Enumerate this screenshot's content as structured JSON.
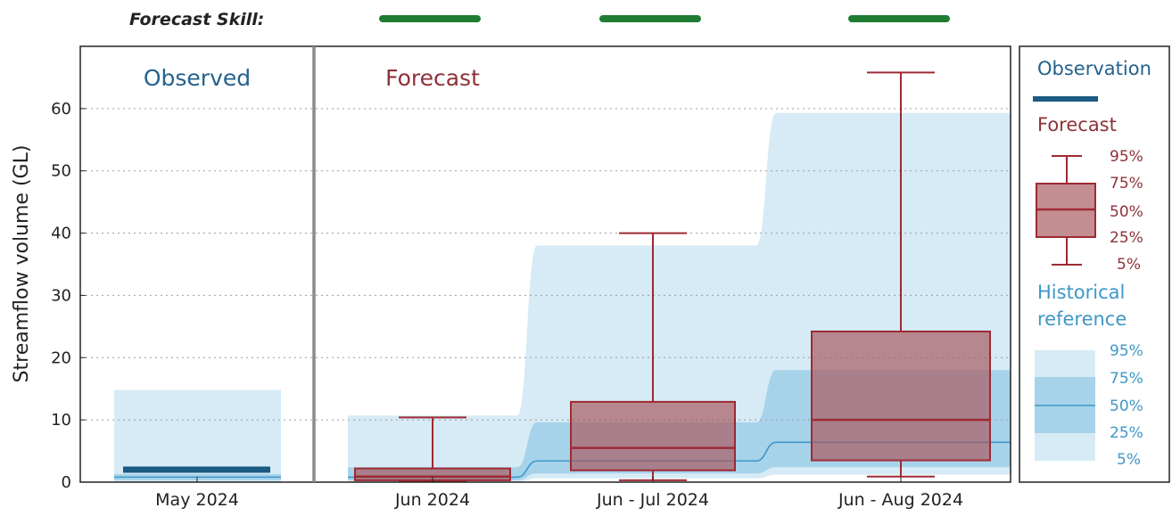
{
  "chart_data": {
    "type": "box",
    "skill_label": "Forecast Skill:",
    "ylabel": "Streamflow volume (GL)",
    "ylim": [
      0,
      70
    ],
    "yticks": [
      0,
      10,
      20,
      30,
      40,
      50,
      60
    ],
    "grid": true,
    "panels": {
      "observed_title": "Observed",
      "forecast_title": "Forecast"
    },
    "categories": [
      "May 2024",
      "Jun 2024",
      "Jun - Jul 2024",
      "Jun - Aug 2024"
    ],
    "observed": {
      "category": "May 2024",
      "value": 2.0
    },
    "forecast_boxes": [
      {
        "category": "Jun 2024",
        "p5": 0.2,
        "p25": 0.3,
        "p50": 0.9,
        "p75": 2.2,
        "p95": 10.4
      },
      {
        "category": "Jun - Jul 2024",
        "p5": 0.3,
        "p25": 1.9,
        "p50": 5.5,
        "p75": 12.9,
        "p95": 40.0
      },
      {
        "category": "Jun - Aug 2024",
        "p5": 0.9,
        "p25": 3.5,
        "p50": 10.0,
        "p75": 24.2,
        "p95": 65.8
      }
    ],
    "historical_reference": [
      {
        "category": "May 2024",
        "p5": 0.0,
        "p25": 0.3,
        "p50": 0.8,
        "p75": 1.3,
        "p95": 14.8
      },
      {
        "category": "Jun 2024",
        "p5": 0.0,
        "p25": 0.3,
        "p50": 0.8,
        "p75": 2.4,
        "p95": 10.7
      },
      {
        "category": "Jun - Jul 2024",
        "p5": 0.6,
        "p25": 1.4,
        "p50": 3.4,
        "p75": 9.6,
        "p95": 38.0
      },
      {
        "category": "Jun - Aug 2024",
        "p5": 1.2,
        "p25": 2.4,
        "p50": 6.4,
        "p75": 18.0,
        "p95": 59.3
      }
    ],
    "forecast_skill": [
      {
        "category": "Jun 2024",
        "color": "#1e7d32"
      },
      {
        "category": "Jun - Jul 2024",
        "color": "#1e7d32"
      },
      {
        "category": "Jun - Aug 2024",
        "color": "#1e7d32"
      }
    ],
    "legend": {
      "placement": "right",
      "observation": "Observation",
      "forecast": "Forecast",
      "historical_line1": "Historical",
      "historical_line2": "reference",
      "percentiles": [
        "95%",
        "75%",
        "50%",
        "25%",
        "5%"
      ]
    },
    "colors": {
      "observed": "#1b5a82",
      "forecast_box_fill": "#a8575e",
      "forecast_line": "#9e2a33",
      "hist_outer": "#d6ebf5",
      "hist_inner": "#a7d3ea",
      "hist_median": "#3f97c8",
      "historical_text": "#3f97c8",
      "forecast_text": "#8e3238",
      "observed_text": "#24628d",
      "skill": "#1e7d32"
    }
  }
}
